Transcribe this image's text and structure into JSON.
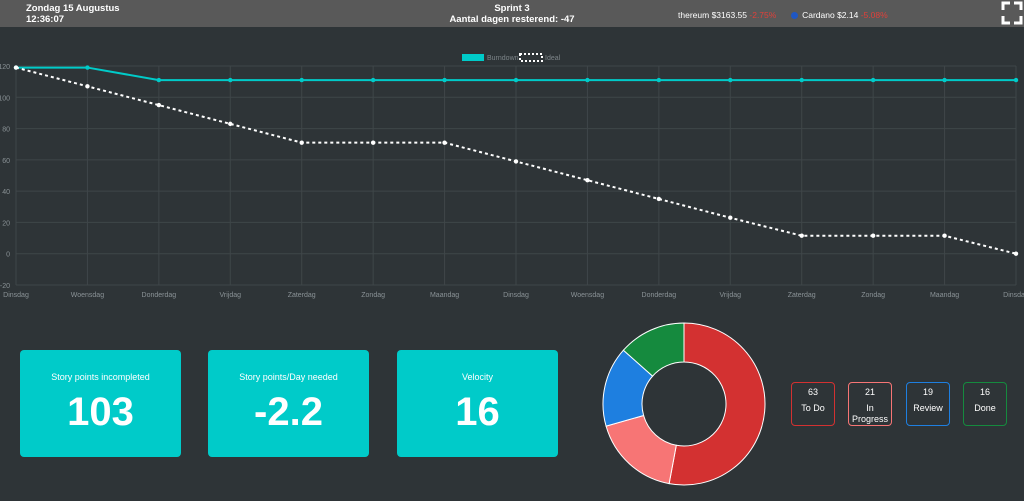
{
  "header": {
    "date": "Zondag 15 Augustus",
    "time": "12:36:07",
    "sprint": "Sprint 3",
    "days_remaining": "Aantal dagen resterend: -47",
    "ticker": [
      {
        "name": "thereum",
        "price": "$3163.55",
        "change": "-2.75%"
      },
      {
        "name": "Cardano",
        "price": "$2.14",
        "change": "-5.08%"
      }
    ],
    "fullscreen_icon": "fullscreen-icon"
  },
  "chart_data": [
    {
      "type": "line",
      "x": [
        "Dinsdag",
        "Woensdag",
        "Donderdag",
        "Vrijdag",
        "Zaterdag",
        "Zondag",
        "Maandag",
        "Dinsdag",
        "Woensdag",
        "Donderdag",
        "Vrijdag",
        "Zaterdag",
        "Zondag",
        "Maandag",
        "Dinsdag"
      ],
      "series": [
        {
          "name": "Burndown",
          "color": "#00cbc9",
          "values": [
            119,
            119,
            111,
            111,
            111,
            111,
            111,
            111,
            111,
            111,
            111,
            111,
            111,
            111,
            111
          ]
        },
        {
          "name": "Ideal",
          "color": "#ffffff",
          "values": [
            119,
            107,
            95,
            83,
            71,
            71,
            71,
            59,
            47,
            35,
            23,
            11.5,
            11.5,
            11.5,
            0
          ]
        }
      ],
      "ylim": [
        -20,
        120
      ],
      "yticks": [
        -20,
        0,
        20,
        40,
        60,
        80,
        100,
        120
      ],
      "grid": true,
      "legend": "top-center"
    },
    {
      "type": "pie",
      "labels": [
        "To Do",
        "In Progress",
        "Review",
        "Done"
      ],
      "values": [
        63,
        21,
        19,
        16
      ],
      "colors": [
        "#d33131",
        "#f77575",
        "#1e7fe0",
        "#158a3e"
      ]
    }
  ],
  "cards": [
    {
      "label": "Story points incompleted",
      "value": "103"
    },
    {
      "label": "Story points/Day needed",
      "value": "-2.2"
    },
    {
      "label": "Velocity",
      "value": "16"
    }
  ],
  "statuses": [
    {
      "count": "63",
      "name": "To Do",
      "color": "#d33131"
    },
    {
      "count": "21",
      "name": "In Progress",
      "color": "#f77575"
    },
    {
      "count": "19",
      "name": "Review",
      "color": "#1e7fe0"
    },
    {
      "count": "16",
      "name": "Done",
      "color": "#158a3e"
    }
  ]
}
